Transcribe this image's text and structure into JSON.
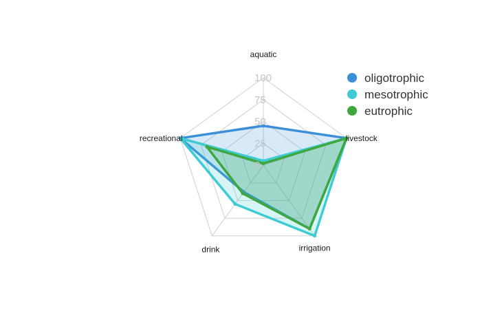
{
  "chart_data": {
    "type": "radar",
    "axes": [
      "aquatic",
      "livestock",
      "irrigation",
      "drink",
      "recreational"
    ],
    "rmax": 100,
    "ticks": [
      "0",
      "25",
      "50",
      "75",
      "100"
    ],
    "grid": true,
    "legend_position": "top-right",
    "series": [
      {
        "name": "oligotrophic",
        "color": "#3b8fd9",
        "values": [
          45,
          100,
          90,
          38,
          100
        ]
      },
      {
        "name": "mesotrophic",
        "color": "#3ecbd4",
        "values": [
          5,
          100,
          100,
          55,
          100
        ]
      },
      {
        "name": "eutrophic",
        "color": "#3ea83e",
        "values": [
          2,
          100,
          90,
          40,
          68
        ]
      }
    ]
  }
}
